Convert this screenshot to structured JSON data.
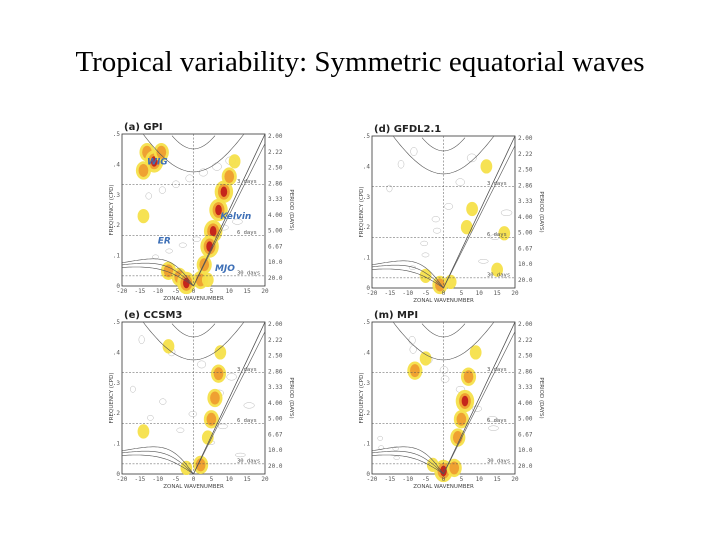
{
  "title": "Tropical variability: Symmetric equatorial waves",
  "colors": {
    "light": "#f5e04a",
    "mid": "#efa132",
    "strong": "#c5261c",
    "grid": "#555555",
    "contour": "#b9b9b9",
    "wave_label": "#3d6fb6"
  },
  "panels": [
    {
      "label": "(a) GPI",
      "xlabel": "ZONAL WAVENUMBER",
      "ylabel": "FREQUENCY (CPD)",
      "right_label": "PERIOD (DAYS)",
      "period_labels": [
        "3 days",
        "6 days",
        "30 days"
      ],
      "wave_labels": [
        "WIG",
        "Kelvin",
        "ER",
        "MJO"
      ]
    },
    {
      "label": "(d) GFDL2.1",
      "xlabel": "ZONAL WAVENUMBER",
      "ylabel": "FREQUENCY (CPD)",
      "right_label": "PERIOD (DAYS)",
      "period_labels": [
        "3 days",
        "6 days",
        "30 days"
      ],
      "wave_labels": []
    },
    {
      "label": "(e) CCSM3",
      "xlabel": "ZONAL WAVENUMBER",
      "ylabel": "FREQUENCY (CPD)",
      "right_label": "PERIOD (DAYS)",
      "period_labels": [
        "3 days",
        "6 days",
        "30 days"
      ],
      "wave_labels": []
    },
    {
      "label": "(m) MPI",
      "xlabel": "ZONAL WAVENUMBER",
      "ylabel": "FREQUENCY (CPD)",
      "right_label": "PERIOD (DAYS)",
      "period_labels": [
        "3 days",
        "6 days",
        "30 days"
      ],
      "wave_labels": []
    }
  ],
  "chart_data": {
    "type": "heatmap",
    "x_ticks": [
      "-20",
      "-15",
      "-10",
      "-5",
      "0",
      "5",
      "10",
      "15",
      "20"
    ],
    "y_ticks": [
      ".5",
      ".4",
      ".3",
      ".2",
      ".1",
      "0"
    ],
    "period_ticks": [
      "2.00",
      "2.22",
      "2.50",
      "2.86",
      "3.33",
      "4.00",
      "5.00",
      "6.67",
      "10.0",
      "20.0"
    ],
    "xlim": [
      -20,
      20
    ],
    "ylim": [
      0,
      0.5
    ],
    "period_lines_days": [
      3,
      6,
      30
    ],
    "equivalent_depths_m": [
      12,
      25,
      50
    ],
    "signal_levels": [
      1.1,
      1.2,
      1.4
    ],
    "signal_regions": [
      [
        {
          "x": -13,
          "y": 0.44,
          "level": 2
        },
        {
          "x": -11,
          "y": 0.41,
          "level": 3
        },
        {
          "x": -14,
          "y": 0.38,
          "level": 2
        },
        {
          "x": -9,
          "y": 0.44,
          "level": 2
        },
        {
          "x": 8.5,
          "y": 0.31,
          "level": 3
        },
        {
          "x": 7,
          "y": 0.25,
          "level": 3
        },
        {
          "x": 5.5,
          "y": 0.18,
          "level": 3
        },
        {
          "x": 4.5,
          "y": 0.13,
          "level": 3
        },
        {
          "x": 3,
          "y": 0.07,
          "level": 2
        },
        {
          "x": 10,
          "y": 0.36,
          "level": 2
        },
        {
          "x": 11.5,
          "y": 0.41,
          "level": 1
        },
        {
          "x": -7,
          "y": 0.05,
          "level": 2
        },
        {
          "x": -4,
          "y": 0.03,
          "level": 2
        },
        {
          "x": 2,
          "y": 0.02,
          "level": 2
        },
        {
          "x": 4,
          "y": 0.02,
          "level": 1
        },
        {
          "x": -14,
          "y": 0.23,
          "level": 1
        },
        {
          "x": -2,
          "y": 0.01,
          "level": 3
        }
      ],
      [
        {
          "x": 8,
          "y": 0.26,
          "level": 1
        },
        {
          "x": 6.5,
          "y": 0.2,
          "level": 1
        },
        {
          "x": 12,
          "y": 0.4,
          "level": 1
        },
        {
          "x": 15,
          "y": 0.06,
          "level": 1
        },
        {
          "x": -1,
          "y": 0.01,
          "level": 2
        },
        {
          "x": 2,
          "y": 0.02,
          "level": 1
        },
        {
          "x": -5,
          "y": 0.04,
          "level": 1
        },
        {
          "x": 17,
          "y": 0.18,
          "level": 1
        }
      ],
      [
        {
          "x": 7,
          "y": 0.33,
          "level": 2
        },
        {
          "x": 6,
          "y": 0.25,
          "level": 2
        },
        {
          "x": 5,
          "y": 0.18,
          "level": 2
        },
        {
          "x": 4,
          "y": 0.12,
          "level": 1
        },
        {
          "x": -7,
          "y": 0.42,
          "level": 1
        },
        {
          "x": 2,
          "y": 0.03,
          "level": 2
        },
        {
          "x": -2,
          "y": 0.02,
          "level": 1
        },
        {
          "x": 7.5,
          "y": 0.4,
          "level": 1
        },
        {
          "x": -14,
          "y": 0.14,
          "level": 1
        }
      ],
      [
        {
          "x": 7,
          "y": 0.32,
          "level": 2
        },
        {
          "x": 6,
          "y": 0.24,
          "level": 3
        },
        {
          "x": 5,
          "y": 0.18,
          "level": 2
        },
        {
          "x": 4,
          "y": 0.12,
          "level": 2
        },
        {
          "x": -8,
          "y": 0.34,
          "level": 2
        },
        {
          "x": -5,
          "y": 0.38,
          "level": 1
        },
        {
          "x": 0,
          "y": 0.01,
          "level": 3
        },
        {
          "x": 3,
          "y": 0.02,
          "level": 2
        },
        {
          "x": -3,
          "y": 0.03,
          "level": 1
        },
        {
          "x": 9,
          "y": 0.4,
          "level": 1
        }
      ]
    ]
  }
}
